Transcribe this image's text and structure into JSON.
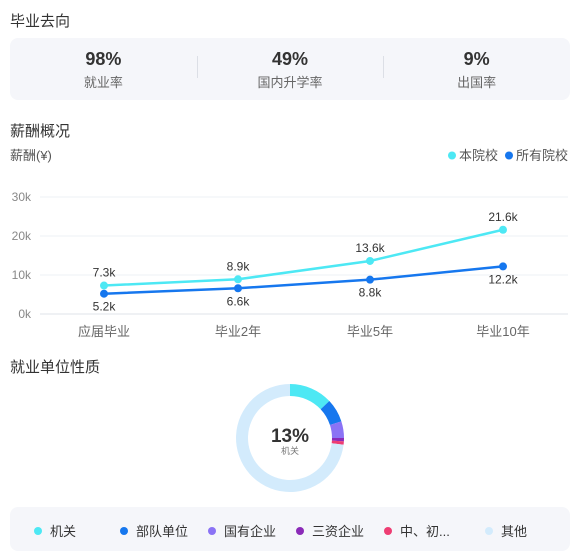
{
  "sections": {
    "destination_title": "毕业去向",
    "salary_title": "薪酬概况",
    "employer_title": "就业单位性质"
  },
  "stats": [
    {
      "value": "98%",
      "label": "就业率"
    },
    {
      "value": "49%",
      "label": "国内升学率"
    },
    {
      "value": "9%",
      "label": "出国率"
    }
  ],
  "chart_data": [
    {
      "type": "line",
      "ylabel": "薪酬(¥)",
      "categories": [
        "应届毕业",
        "毕业2年",
        "毕业5年",
        "毕业10年"
      ],
      "yticks": [
        "0k",
        "10k",
        "20k",
        "30k"
      ],
      "ylim": [
        0,
        30
      ],
      "legend_position": "top-right",
      "grid": true,
      "series": [
        {
          "name": "本院校",
          "values": [
            7.3,
            8.9,
            13.6,
            21.6
          ],
          "labels": [
            "7.3k",
            "8.9k",
            "13.6k",
            "21.6k"
          ],
          "color": "#4de8f4"
        },
        {
          "name": "所有院校",
          "values": [
            5.2,
            6.6,
            8.8,
            12.2
          ],
          "labels": [
            "5.2k",
            "6.6k",
            "8.8k",
            "12.2k"
          ],
          "color": "#1677ee"
        }
      ]
    },
    {
      "type": "pie",
      "center_value": "13%",
      "center_label": "机关",
      "slices": [
        {
          "name": "机关",
          "value": 13,
          "color": "#4de8f4"
        },
        {
          "name": "部队单位",
          "value": 7,
          "color": "#1677ee"
        },
        {
          "name": "国有企业",
          "value": 5,
          "color": "#8b73f5"
        },
        {
          "name": "三资企业",
          "value": 1,
          "color": "#8b2ab8"
        },
        {
          "name": "中、初...",
          "value": 1,
          "color": "#ee3d73"
        },
        {
          "name": "其他",
          "value": 73,
          "color": "#d3ebfc"
        }
      ]
    }
  ]
}
